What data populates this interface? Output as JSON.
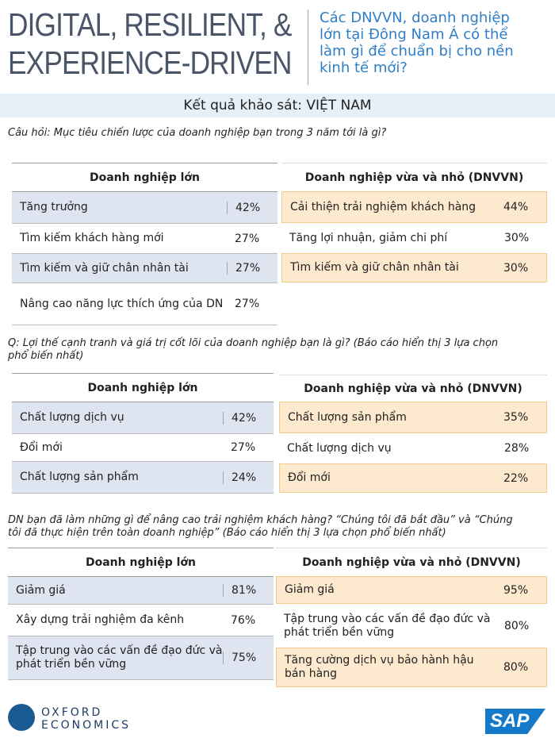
{
  "header": {
    "title_lines": [
      "DIGITAL, RESILIENT, &",
      "EXPERIENCE-DRIVEN"
    ],
    "question": "Các DNVVN, doanh nghiệp lớn tại Đông Nam Á có thể làm gì để chuẩn bị cho nền kinh tế mới?"
  },
  "subtitle": "Kết quả khảo sát: VIỆT NAM",
  "sections": [
    {
      "question": "Câu hỏi: Mục tiêu chiến lược của doanh nghiệp bạn trong 3 năm tới là gì?",
      "left": {
        "heading": "Doanh nghiệp lớn",
        "rows": [
          [
            "Tăng trưởng",
            "42%"
          ],
          [
            "Tìm kiếm khách hàng mới",
            "27%"
          ],
          [
            "Tìm kiếm và giữ chân nhân tài",
            "27%"
          ],
          [
            "Nâng cao năng lực thích ứng của DN",
            "27%"
          ]
        ]
      },
      "right": {
        "heading": "Doanh nghiệp vừa và nhỏ (DNVVN)",
        "rows": [
          [
            "Cải thiện trải nghiệm khách hàng",
            "44%"
          ],
          [
            "Tăng lợi nhuận, giảm chi phí",
            "30%"
          ],
          [
            "Tìm kiếm và giữ chân nhân tài",
            "30%"
          ]
        ]
      }
    },
    {
      "question": "Q: Lợi thế cạnh tranh và giá trị cốt lõi của doanh nghiệp bạn là gì? (Báo cáo hiển thị 3 lựa chọn phổ biến nhất)",
      "left": {
        "heading": "Doanh nghiệp lớn",
        "rows": [
          [
            "Chất lượng dịch vụ",
            "42%"
          ],
          [
            "Đổi mới",
            "27%"
          ],
          [
            "Chất lượng sản phẩm",
            "24%"
          ]
        ]
      },
      "right": {
        "heading": "Doanh nghiệp vừa và nhỏ (DNVVN)",
        "rows": [
          [
            "Chất lượng sản phẩm",
            "35%"
          ],
          [
            "Chất lượng dịch vụ",
            "28%"
          ],
          [
            "Đổi mới",
            "22%"
          ]
        ]
      }
    },
    {
      "question": "DN bạn đã làm những gì để nâng cao trải nghiệm khách hàng? “Chúng tôi đã bắt đầu” và “Chúng tôi đã thực hiện trên toàn doanh nghiệp” (Báo cáo hiển thị 3 lựa chọn phổ biến nhất)",
      "left": {
        "heading": "Doanh nghiệp lớn",
        "rows": [
          [
            "Giảm giá",
            "81%"
          ],
          [
            "Xây dựng trải nghiệm đa kênh",
            "76%"
          ],
          [
            "Tập trung vào các vấn đề đạo đức và phát triển bền vững",
            "75%"
          ]
        ]
      },
      "right": {
        "heading": "Doanh nghiệp vừa và nhỏ (DNVVN)",
        "rows": [
          [
            "Giảm giá",
            "95%"
          ],
          [
            "Tập trung vào các vấn đề đạo đức và phát triển bền vững",
            "80%"
          ],
          [
            "Tăng cường dịch vụ bảo hành hậu bán hàng",
            "80%"
          ]
        ]
      }
    }
  ],
  "footer": {
    "oxford": [
      "OXFORD",
      "ECONOMICS"
    ],
    "sap": "SAP"
  }
}
